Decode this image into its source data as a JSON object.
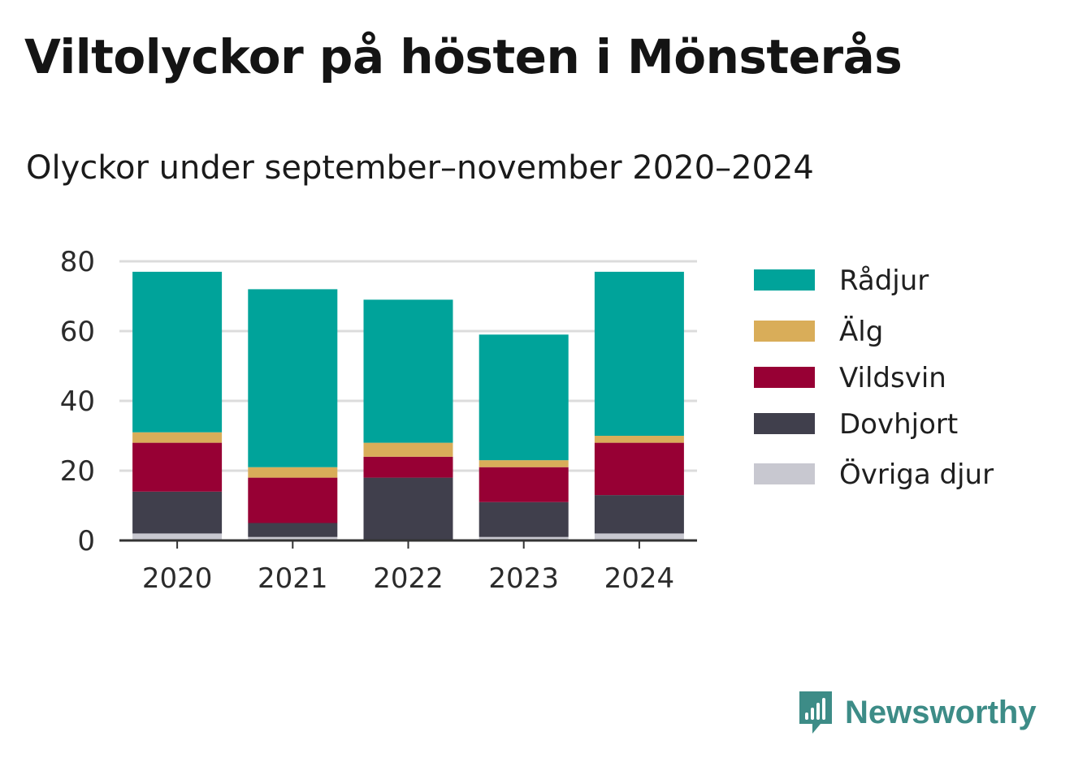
{
  "chart_data": {
    "type": "bar",
    "stacked": true,
    "title": "Viltolyckor på hösten i Mönsterås",
    "subtitle": "Olyckor under september–november 2020–2024",
    "xlabel": "",
    "ylabel": "",
    "categories": [
      "2020",
      "2021",
      "2022",
      "2023",
      "2024"
    ],
    "ylim": [
      0,
      80
    ],
    "yticks": [
      "0",
      "20",
      "40",
      "60",
      "80"
    ],
    "grid": true,
    "legend_position": "right",
    "series": [
      {
        "name": "Övriga djur",
        "color": "#c8c8d0",
        "values": [
          2,
          1,
          0,
          1,
          2
        ]
      },
      {
        "name": "Dovhjort",
        "color": "#403f4c",
        "values": [
          12,
          4,
          18,
          10,
          11
        ]
      },
      {
        "name": "Vildsvin",
        "color": "#970034",
        "values": [
          14,
          13,
          6,
          10,
          15
        ]
      },
      {
        "name": "Älg",
        "color": "#d9ad59",
        "values": [
          3,
          3,
          4,
          2,
          2
        ]
      },
      {
        "name": "Rådjur",
        "color": "#00a39a",
        "values": [
          46,
          51,
          41,
          36,
          47
        ]
      }
    ]
  },
  "brand": {
    "name": "Newsworthy",
    "color": "#3d8c87"
  }
}
